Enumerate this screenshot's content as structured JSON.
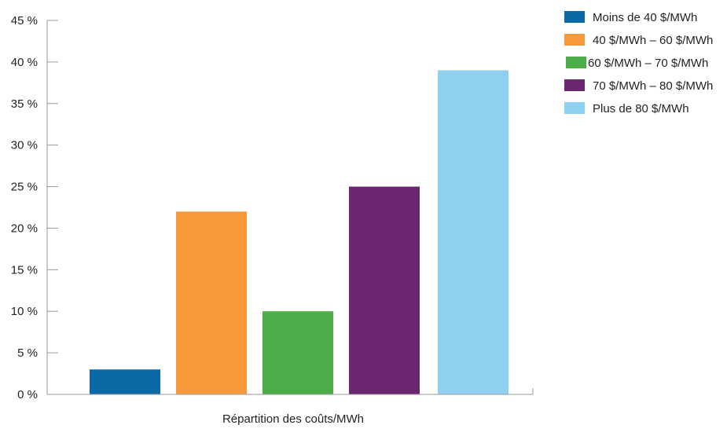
{
  "chart_data": {
    "type": "bar",
    "title": "",
    "xlabel": "Répartition des coûts/MWh",
    "ylabel": "",
    "ylim": [
      0,
      45
    ],
    "yticks": [
      0,
      5,
      10,
      15,
      20,
      25,
      30,
      35,
      40,
      45
    ],
    "ytick_labels": [
      "0 %",
      "5 %",
      "10 %",
      "15 %",
      "20 %",
      "25 %",
      "30 %",
      "35 %",
      "40 %",
      "45 %"
    ],
    "grid": false,
    "legend_position": "top-right",
    "categories": [
      "Moins de 40 $/MWh",
      "40 $/MWh – 60 $/MWh",
      "60 $/MWh – 70 $/MWh",
      "70 $/MWh – 80 $/MWh",
      "Plus de 80 $/MWh"
    ],
    "values": [
      3,
      22,
      10,
      25,
      39
    ],
    "colors": [
      "#0B6AA6",
      "#F7993A",
      "#4CAC48",
      "#6A2670",
      "#8DD0F0"
    ],
    "unit": "%"
  }
}
